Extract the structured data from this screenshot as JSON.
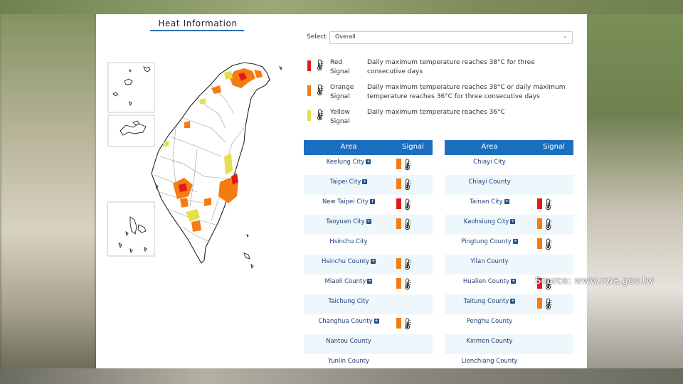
{
  "page": {
    "title": "Heat Information"
  },
  "select": {
    "label": "Select",
    "value": "Overall"
  },
  "legend": [
    {
      "name1": "Red",
      "name2": "Signal",
      "color": "#e01b1b",
      "desc": "Daily maximum temperature reaches 38°C for three consecutive days"
    },
    {
      "name1": "Orange",
      "name2": "Signal",
      "color": "#f57c12",
      "desc": "Daily maximum temperature reaches 38°C or daily maximum temperature reaches 36°C for three consecutive days"
    },
    {
      "name1": "Yellow",
      "name2": "Signal",
      "color": "#e5e04a",
      "desc": "Daily maximum temperature reaches 36°C"
    }
  ],
  "table_left": {
    "header_area": "Area",
    "header_signal": "Signal",
    "rows": [
      {
        "area": "Keelung City",
        "expand": true,
        "signal": "orange"
      },
      {
        "area": "Taipei City",
        "expand": true,
        "signal": "orange"
      },
      {
        "area": "New Taipei City",
        "expand": true,
        "signal": "red"
      },
      {
        "area": "Taoyuan City",
        "expand": true,
        "signal": "orange"
      },
      {
        "area": "Hsinchu City",
        "expand": false,
        "signal": ""
      },
      {
        "area": "Hsinchu County",
        "expand": true,
        "signal": "orange"
      },
      {
        "area": "Miaoli County",
        "expand": true,
        "signal": "orange"
      },
      {
        "area": "Taichung City",
        "expand": false,
        "signal": ""
      },
      {
        "area": "Changhua County",
        "expand": true,
        "signal": "orange"
      },
      {
        "area": "Nantou County",
        "expand": false,
        "signal": ""
      },
      {
        "area": "Yunlin County",
        "expand": false,
        "signal": ""
      }
    ]
  },
  "table_right": {
    "header_area": "Area",
    "header_signal": "Signal",
    "rows": [
      {
        "area": "Chiayi City",
        "expand": false,
        "signal": ""
      },
      {
        "area": "Chiayi County",
        "expand": false,
        "signal": ""
      },
      {
        "area": "Tainan City",
        "expand": true,
        "signal": "red"
      },
      {
        "area": "Kaohsiung City",
        "expand": true,
        "signal": "orange"
      },
      {
        "area": "Pingtung County",
        "expand": true,
        "signal": "orange"
      },
      {
        "area": "Yilan County",
        "expand": false,
        "signal": ""
      },
      {
        "area": "Hualien County",
        "expand": true,
        "signal": "red"
      },
      {
        "area": "Taitung County",
        "expand": true,
        "signal": "orange"
      },
      {
        "area": "Penghu County",
        "expand": false,
        "signal": ""
      },
      {
        "area": "Kinmen County",
        "expand": false,
        "signal": ""
      },
      {
        "area": "Lienchiang County",
        "expand": false,
        "signal": ""
      }
    ]
  },
  "signal_colors": {
    "red": "#e01b1b",
    "orange": "#f57c12",
    "yellow": "#e5e04a"
  },
  "icons": {
    "signal": "thermometer-icon",
    "expand": "plus-icon",
    "dropdown": "chevron-down-icon"
  },
  "watermark": "Source: www.cwa.gov.tw"
}
